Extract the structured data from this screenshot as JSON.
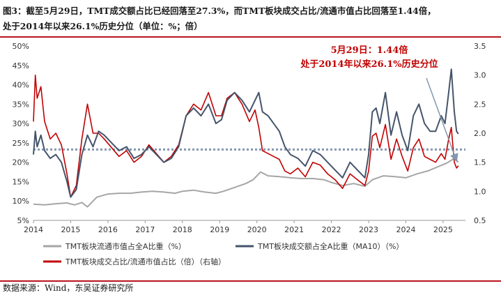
{
  "caption": {
    "line1": "图3：截至5月29日，TMT成交额占比已经回落至27.3%，而TMT板块成交占比/流通市值占比回落至1.44倍，",
    "line2": "处于2014年以来26.1%历史分位（单位：%；倍）"
  },
  "source": "数据来源：Wind，东吴证券研究所",
  "colors": {
    "grey_series": "#a6a6a6",
    "navy_series": "#44546a",
    "red_series": "#c00000",
    "reference_line": "#8497b0",
    "border": "#b9151c"
  },
  "chart_data": {
    "type": "line",
    "x_range": [
      2014.0,
      2025.6
    ],
    "x_ticks": [
      "2014",
      "2015",
      "2016",
      "2017",
      "2018",
      "2019",
      "2020",
      "2021",
      "2022",
      "2023",
      "2024",
      "2025"
    ],
    "y_left": {
      "range": [
        5,
        50
      ],
      "ticks": [
        "5%",
        "10%",
        "15%",
        "20%",
        "25%",
        "30%",
        "35%",
        "40%",
        "45%",
        "50%"
      ]
    },
    "y_right": {
      "range": [
        0.5,
        3.5
      ],
      "ticks": [
        "0.5",
        "1.0",
        "1.5",
        "2.0",
        "2.5",
        "3.0",
        "3.5"
      ]
    },
    "reference_line": {
      "axis": "right",
      "value": 1.72
    },
    "annotation": {
      "line1": "5月29日：1.44倍",
      "line2": "处于2014年以来26.1%历史分位",
      "arrow_target": {
        "x": 2025.41,
        "y_right": 1.44
      }
    },
    "series": [
      {
        "name": "TMT板块流通市值占全A比重（%）",
        "axis": "left",
        "x": [
          2014.0,
          2014.3,
          2014.6,
          2014.9,
          2015.1,
          2015.3,
          2015.45,
          2015.7,
          2016.0,
          2016.3,
          2016.6,
          2016.9,
          2017.2,
          2017.5,
          2017.8,
          2018.0,
          2018.3,
          2018.6,
          2018.9,
          2019.1,
          2019.4,
          2019.7,
          2019.9,
          2020.1,
          2020.3,
          2020.6,
          2020.9,
          2021.2,
          2021.5,
          2021.8,
          2022.0,
          2022.3,
          2022.6,
          2022.9,
          2023.1,
          2023.4,
          2023.7,
          2024.0,
          2024.3,
          2024.6,
          2024.9,
          2025.1,
          2025.3,
          2025.41
        ],
        "values": [
          9.2,
          9.0,
          9.3,
          9.5,
          9.0,
          9.6,
          8.5,
          11.0,
          11.8,
          12.0,
          12.0,
          12.3,
          12.5,
          12.3,
          12.0,
          12.5,
          12.8,
          12.3,
          12.0,
          12.5,
          13.5,
          14.5,
          15.5,
          17.5,
          16.5,
          16.3,
          16.0,
          15.8,
          15.8,
          15.5,
          14.8,
          14.0,
          14.5,
          13.8,
          15.5,
          16.5,
          16.3,
          16.0,
          17.0,
          17.8,
          19.0,
          19.8,
          21.0,
          20.0
        ]
      },
      {
        "name": "TMT板块成交额占全A比重（MA10）（%）",
        "axis": "left",
        "x": [
          2014.0,
          2014.05,
          2014.1,
          2014.2,
          2014.3,
          2014.45,
          2014.6,
          2014.75,
          2014.9,
          2015.0,
          2015.15,
          2015.3,
          2015.45,
          2015.6,
          2015.75,
          2015.9,
          2016.1,
          2016.3,
          2016.5,
          2016.7,
          2016.9,
          2017.1,
          2017.3,
          2017.5,
          2017.7,
          2017.9,
          2018.1,
          2018.3,
          2018.5,
          2018.7,
          2018.9,
          2019.05,
          2019.2,
          2019.4,
          2019.6,
          2019.8,
          2019.95,
          2020.05,
          2020.15,
          2020.3,
          2020.45,
          2020.6,
          2020.75,
          2020.9,
          2021.1,
          2021.3,
          2021.5,
          2021.7,
          2021.9,
          2022.1,
          2022.3,
          2022.5,
          2022.7,
          2022.9,
          2023.0,
          2023.1,
          2023.2,
          2023.3,
          2023.45,
          2023.6,
          2023.75,
          2023.9,
          2024.05,
          2024.2,
          2024.35,
          2024.5,
          2024.65,
          2024.8,
          2024.95,
          2025.05,
          2025.15,
          2025.22,
          2025.3,
          2025.36,
          2025.41
        ],
        "values": [
          22.0,
          28.0,
          24.0,
          27.0,
          23.0,
          21.0,
          22.0,
          20.0,
          15.0,
          11.0,
          13.0,
          22.0,
          27.0,
          24.0,
          28.0,
          27.0,
          25.0,
          23.0,
          24.0,
          21.0,
          22.0,
          24.0,
          22.0,
          20.0,
          21.0,
          24.0,
          32.0,
          34.0,
          32.0,
          35.0,
          30.0,
          31.0,
          36.0,
          38.0,
          36.0,
          33.0,
          36.0,
          38.0,
          33.0,
          32.0,
          30.0,
          28.0,
          24.0,
          22.0,
          21.0,
          19.0,
          23.0,
          22.0,
          20.0,
          18.0,
          16.0,
          20.0,
          18.0,
          16.0,
          22.0,
          33.0,
          34.0,
          30.0,
          38.0,
          27.0,
          33.0,
          27.0,
          23.0,
          32.0,
          35.0,
          30.0,
          28.0,
          28.0,
          32.0,
          30.0,
          38.0,
          44.0,
          33.0,
          28.0,
          27.3
        ]
      },
      {
        "name": "TMT板块成交占比/流通市值占比（倍）（右轴）",
        "axis": "right",
        "x": [
          2014.0,
          2014.05,
          2014.1,
          2014.2,
          2014.3,
          2014.45,
          2014.6,
          2014.75,
          2014.9,
          2015.0,
          2015.15,
          2015.3,
          2015.45,
          2015.6,
          2015.75,
          2015.9,
          2016.1,
          2016.3,
          2016.5,
          2016.7,
          2016.9,
          2017.1,
          2017.3,
          2017.5,
          2017.7,
          2017.9,
          2018.1,
          2018.3,
          2018.5,
          2018.7,
          2018.9,
          2019.05,
          2019.2,
          2019.4,
          2019.6,
          2019.8,
          2019.95,
          2020.05,
          2020.15,
          2020.3,
          2020.45,
          2020.6,
          2020.75,
          2020.9,
          2021.1,
          2021.3,
          2021.5,
          2021.7,
          2021.9,
          2022.1,
          2022.3,
          2022.5,
          2022.7,
          2022.9,
          2023.0,
          2023.1,
          2023.2,
          2023.3,
          2023.45,
          2023.6,
          2023.75,
          2023.9,
          2024.05,
          2024.2,
          2024.35,
          2024.5,
          2024.65,
          2024.8,
          2024.95,
          2025.05,
          2025.15,
          2025.22,
          2025.3,
          2025.36,
          2025.41
        ],
        "values": [
          2.2,
          3.0,
          2.6,
          2.8,
          2.2,
          1.9,
          2.0,
          1.8,
          1.3,
          0.9,
          1.1,
          1.9,
          2.5,
          2.0,
          2.0,
          1.9,
          1.75,
          1.6,
          1.7,
          1.5,
          1.6,
          1.8,
          1.65,
          1.5,
          1.6,
          1.8,
          2.3,
          2.5,
          2.4,
          2.7,
          2.3,
          2.3,
          2.6,
          2.7,
          2.5,
          2.2,
          2.4,
          2.1,
          1.7,
          1.65,
          1.6,
          1.55,
          1.35,
          1.3,
          1.4,
          1.25,
          1.5,
          1.45,
          1.3,
          1.2,
          1.05,
          1.3,
          1.2,
          1.1,
          1.35,
          1.95,
          2.0,
          1.75,
          2.15,
          1.55,
          1.9,
          1.6,
          1.35,
          1.75,
          1.9,
          1.6,
          1.55,
          1.5,
          1.65,
          1.55,
          1.9,
          2.1,
          1.5,
          1.4,
          1.44
        ]
      }
    ],
    "legend_position": "bottom"
  }
}
